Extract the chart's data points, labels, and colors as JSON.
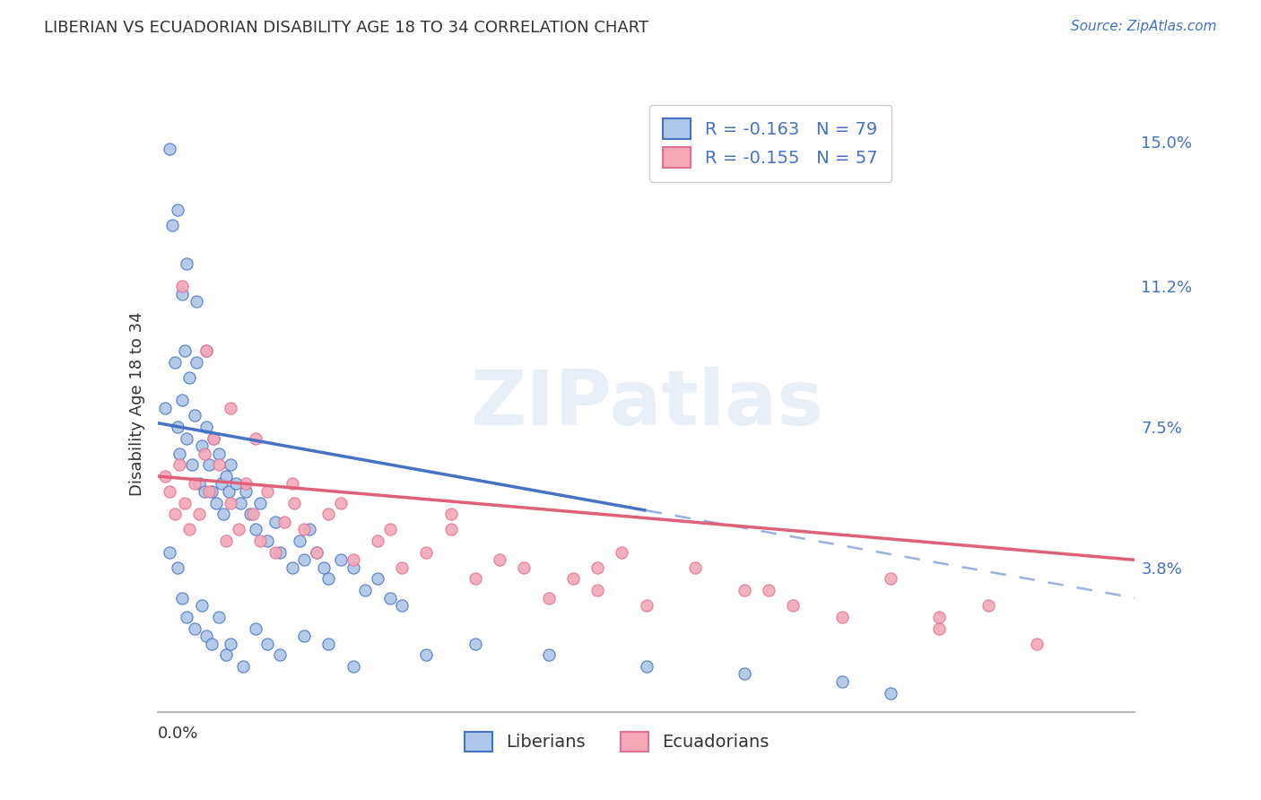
{
  "title": "LIBERIAN VS ECUADORIAN DISABILITY AGE 18 TO 34 CORRELATION CHART",
  "source": "Source: ZipAtlas.com",
  "ylabel": "Disability Age 18 to 34",
  "yticks": [
    0.038,
    0.075,
    0.112,
    0.15
  ],
  "ytick_labels": [
    "3.8%",
    "7.5%",
    "11.2%",
    "15.0%"
  ],
  "xmin": 0.0,
  "xmax": 0.4,
  "ymin": 0.0,
  "ymax": 0.162,
  "liberian_R": -0.163,
  "liberian_N": 79,
  "ecuadorian_R": -0.155,
  "ecuadorian_N": 57,
  "liberian_color": "#aec6e8",
  "liberian_edge_color": "#4472c4",
  "ecuadorian_color": "#f4a8b8",
  "ecuadorian_edge_color": "#e07090",
  "liberian_line_color": "#4472c4",
  "ecuadorian_line_color": "#e0607a",
  "watermark_text": "ZIPatlas",
  "watermark_color": "#ccddef",
  "legend_lib_label": "R = -0.163   N = 79",
  "legend_ecu_label": "R = -0.155   N = 57",
  "legend_bottom_lib": "Liberians",
  "legend_bottom_ecu": "Ecuadorians",
  "blue_color": "#4472c4",
  "text_color": "#333333",
  "grid_color": "#cccccc",
  "axis_color": "#aaaaaa",
  "lib_x": [
    0.003,
    0.005,
    0.006,
    0.007,
    0.008,
    0.009,
    0.01,
    0.01,
    0.011,
    0.012,
    0.013,
    0.014,
    0.015,
    0.016,
    0.017,
    0.018,
    0.019,
    0.02,
    0.021,
    0.022,
    0.023,
    0.024,
    0.025,
    0.026,
    0.027,
    0.028,
    0.029,
    0.03,
    0.032,
    0.034,
    0.036,
    0.038,
    0.04,
    0.042,
    0.045,
    0.048,
    0.05,
    0.055,
    0.058,
    0.06,
    0.062,
    0.065,
    0.068,
    0.07,
    0.075,
    0.08,
    0.085,
    0.09,
    0.095,
    0.1,
    0.005,
    0.008,
    0.01,
    0.012,
    0.015,
    0.018,
    0.02,
    0.022,
    0.025,
    0.028,
    0.03,
    0.035,
    0.04,
    0.045,
    0.05,
    0.06,
    0.07,
    0.08,
    0.11,
    0.13,
    0.16,
    0.2,
    0.24,
    0.28,
    0.3,
    0.008,
    0.012,
    0.016,
    0.02
  ],
  "lib_y": [
    0.08,
    0.148,
    0.128,
    0.092,
    0.075,
    0.068,
    0.082,
    0.11,
    0.095,
    0.072,
    0.088,
    0.065,
    0.078,
    0.092,
    0.06,
    0.07,
    0.058,
    0.075,
    0.065,
    0.058,
    0.072,
    0.055,
    0.068,
    0.06,
    0.052,
    0.062,
    0.058,
    0.065,
    0.06,
    0.055,
    0.058,
    0.052,
    0.048,
    0.055,
    0.045,
    0.05,
    0.042,
    0.038,
    0.045,
    0.04,
    0.048,
    0.042,
    0.038,
    0.035,
    0.04,
    0.038,
    0.032,
    0.035,
    0.03,
    0.028,
    0.042,
    0.038,
    0.03,
    0.025,
    0.022,
    0.028,
    0.02,
    0.018,
    0.025,
    0.015,
    0.018,
    0.012,
    0.022,
    0.018,
    0.015,
    0.02,
    0.018,
    0.012,
    0.015,
    0.018,
    0.015,
    0.012,
    0.01,
    0.008,
    0.005,
    0.132,
    0.118,
    0.108,
    0.095
  ],
  "ecu_x": [
    0.003,
    0.005,
    0.007,
    0.009,
    0.011,
    0.013,
    0.015,
    0.017,
    0.019,
    0.021,
    0.023,
    0.025,
    0.028,
    0.03,
    0.033,
    0.036,
    0.039,
    0.042,
    0.045,
    0.048,
    0.052,
    0.056,
    0.06,
    0.065,
    0.07,
    0.08,
    0.09,
    0.1,
    0.11,
    0.12,
    0.13,
    0.14,
    0.15,
    0.16,
    0.17,
    0.18,
    0.19,
    0.2,
    0.22,
    0.24,
    0.26,
    0.28,
    0.3,
    0.32,
    0.34,
    0.36,
    0.01,
    0.02,
    0.03,
    0.04,
    0.055,
    0.075,
    0.095,
    0.12,
    0.18,
    0.25,
    0.32
  ],
  "ecu_y": [
    0.062,
    0.058,
    0.052,
    0.065,
    0.055,
    0.048,
    0.06,
    0.052,
    0.068,
    0.058,
    0.072,
    0.065,
    0.045,
    0.055,
    0.048,
    0.06,
    0.052,
    0.045,
    0.058,
    0.042,
    0.05,
    0.055,
    0.048,
    0.042,
    0.052,
    0.04,
    0.045,
    0.038,
    0.042,
    0.048,
    0.035,
    0.04,
    0.038,
    0.03,
    0.035,
    0.032,
    0.042,
    0.028,
    0.038,
    0.032,
    0.028,
    0.025,
    0.035,
    0.022,
    0.028,
    0.018,
    0.112,
    0.095,
    0.08,
    0.072,
    0.06,
    0.055,
    0.048,
    0.052,
    0.038,
    0.032,
    0.025
  ],
  "lib_line_x0": 0.0,
  "lib_line_x_solid_end": 0.2,
  "lib_line_x_dash_end": 0.4,
  "ecu_line_x0": 0.0,
  "ecu_line_x_end": 0.4,
  "lib_line_y0": 0.076,
  "lib_line_y_solid_end": 0.053,
  "lib_line_y_dash_end": 0.03,
  "ecu_line_y0": 0.062,
  "ecu_line_y_end": 0.04
}
